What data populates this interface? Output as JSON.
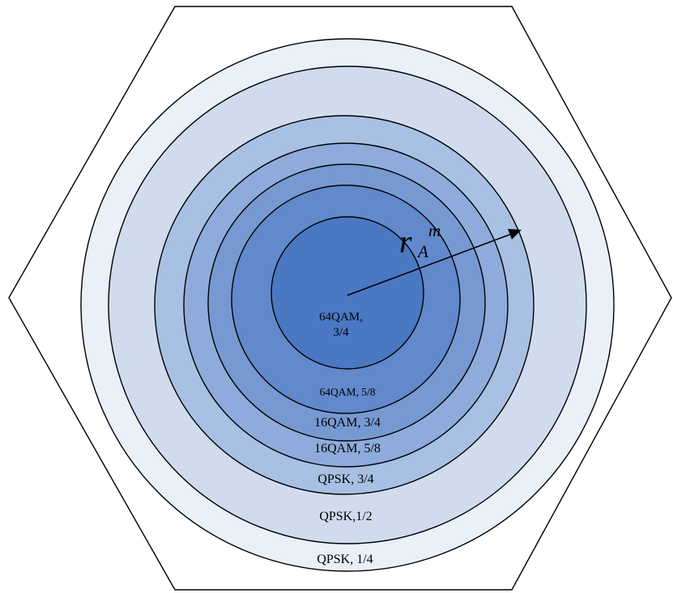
{
  "zones": [
    {
      "label_lines": [
        "QPSK, 1/4"
      ],
      "color": "#eaf0f8"
    },
    {
      "label_lines": [
        "QPSK,1/2"
      ],
      "color": "#d0dcee"
    },
    {
      "label_lines": [
        "QPSK, 3/4"
      ],
      "color": "#a8c0e3"
    },
    {
      "label_lines": [
        "16QAM, 5/8"
      ],
      "color": "#8eabdb"
    },
    {
      "label_lines": [
        "16QAM, 3/4"
      ],
      "color": "#7799d2"
    },
    {
      "label_lines": [
        "64QAM, 5/8"
      ],
      "color": "#6189cb"
    },
    {
      "label_lines": [
        "64QAM,",
        "3/4"
      ],
      "color": "#4a78c2"
    }
  ],
  "radius_label": {
    "symbol": "r",
    "superscript": "m",
    "subscript": "A"
  },
  "colors": {
    "outline": "#000000",
    "background": "#ffffff"
  }
}
